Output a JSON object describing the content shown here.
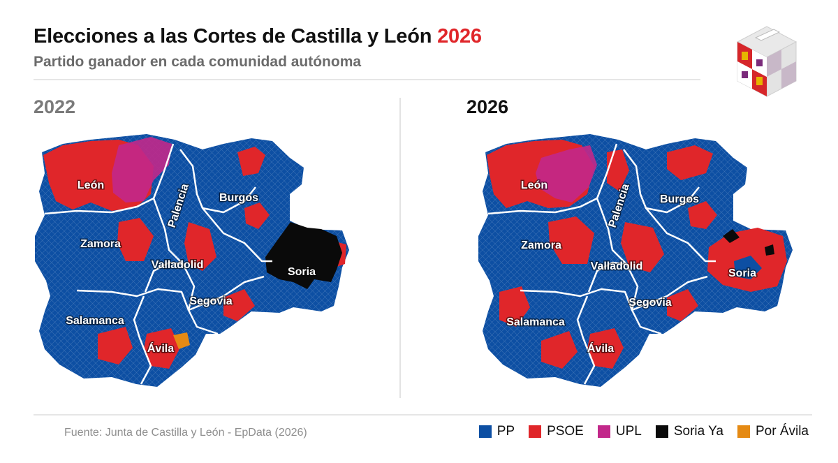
{
  "header": {
    "title_main": "Elecciones a las Cortes de Castilla y León",
    "title_year": "2026",
    "subtitle": "Partido ganador en cada comunidad autónoma"
  },
  "maps": [
    {
      "year": "2022",
      "provinces": [
        "León",
        "Palencia",
        "Burgos",
        "Zamora",
        "Valladolid",
        "Soria",
        "Segovia",
        "Salamanca",
        "Ávila"
      ]
    },
    {
      "year": "2026",
      "provinces": [
        "León",
        "Palencia",
        "Burgos",
        "Zamora",
        "Valladolid",
        "Soria",
        "Segovia",
        "Salamanca",
        "Ávila"
      ]
    }
  ],
  "footer": {
    "source": "Fuente: Junta de Castilla y León - EpData (2026)"
  },
  "legend": [
    {
      "label": "PP",
      "color": "#0d4fa3"
    },
    {
      "label": "PSOE",
      "color": "#e0262a"
    },
    {
      "label": "UPL",
      "color": "#c2288a"
    },
    {
      "label": "Soria Ya",
      "color": "#0a0a0a"
    },
    {
      "label": "Por Ávila",
      "color": "#e58a14"
    }
  ]
}
